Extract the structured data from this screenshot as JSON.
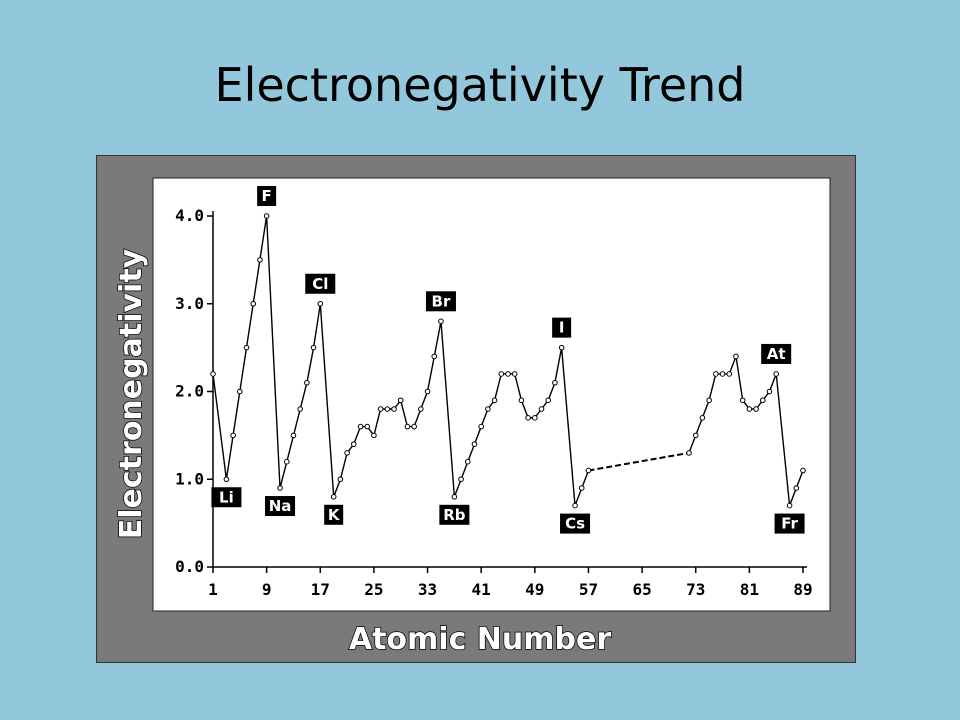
{
  "slide": {
    "title": "Electronegativity Trend"
  },
  "colors": {
    "background": "#93c8dc",
    "frame": "#7a7a7a",
    "plot": "#ffffff",
    "line": "#000000"
  },
  "chart_data": {
    "type": "line",
    "title": "Electronegativity Trend",
    "xlabel": "Atomic Number",
    "ylabel": "Electronegativity",
    "xlim": [
      1,
      89
    ],
    "ylim": [
      0.0,
      4.0
    ],
    "x_ticks": [
      "1",
      "9",
      "17",
      "25",
      "33",
      "41",
      "49",
      "57",
      "65",
      "73",
      "81",
      "89"
    ],
    "y_ticks": [
      "0.0",
      "1.0",
      "2.0",
      "3.0",
      "4.0"
    ],
    "grid": false,
    "series": [
      {
        "style": "solid",
        "segments": [
          [
            [
              1,
              2.2
            ],
            [
              3,
              1.0
            ],
            [
              4,
              1.5
            ],
            [
              5,
              2.0
            ],
            [
              6,
              2.5
            ],
            [
              7,
              3.0
            ],
            [
              8,
              3.5
            ],
            [
              9,
              4.0
            ],
            [
              11,
              0.9
            ],
            [
              12,
              1.2
            ],
            [
              13,
              1.5
            ],
            [
              14,
              1.8
            ],
            [
              15,
              2.1
            ],
            [
              16,
              2.5
            ],
            [
              17,
              3.0
            ],
            [
              19,
              0.8
            ],
            [
              20,
              1.0
            ],
            [
              21,
              1.3
            ],
            [
              22,
              1.4
            ],
            [
              23,
              1.6
            ],
            [
              24,
              1.6
            ],
            [
              25,
              1.5
            ],
            [
              26,
              1.8
            ],
            [
              27,
              1.8
            ],
            [
              28,
              1.8
            ],
            [
              29,
              1.9
            ],
            [
              30,
              1.6
            ],
            [
              31,
              1.6
            ],
            [
              32,
              1.8
            ],
            [
              33,
              2.0
            ],
            [
              34,
              2.4
            ],
            [
              35,
              2.8
            ],
            [
              37,
              0.8
            ],
            [
              38,
              1.0
            ],
            [
              39,
              1.2
            ],
            [
              40,
              1.4
            ],
            [
              41,
              1.6
            ],
            [
              42,
              1.8
            ],
            [
              43,
              1.9
            ],
            [
              44,
              2.2
            ],
            [
              45,
              2.2
            ],
            [
              46,
              2.2
            ],
            [
              47,
              1.9
            ],
            [
              48,
              1.7
            ],
            [
              49,
              1.7
            ],
            [
              50,
              1.8
            ],
            [
              51,
              1.9
            ],
            [
              52,
              2.1
            ],
            [
              53,
              2.5
            ],
            [
              55,
              0.7
            ],
            [
              56,
              0.9
            ],
            [
              57,
              1.1
            ]
          ],
          [
            [
              72,
              1.3
            ],
            [
              73,
              1.5
            ],
            [
              74,
              1.7
            ],
            [
              75,
              1.9
            ],
            [
              76,
              2.2
            ],
            [
              77,
              2.2
            ],
            [
              78,
              2.2
            ],
            [
              79,
              2.4
            ],
            [
              80,
              1.9
            ],
            [
              81,
              1.8
            ],
            [
              82,
              1.8
            ],
            [
              83,
              1.9
            ],
            [
              84,
              2.0
            ],
            [
              85,
              2.2
            ],
            [
              87,
              0.7
            ],
            [
              88,
              0.9
            ],
            [
              89,
              1.1
            ]
          ]
        ]
      },
      {
        "style": "dashed",
        "segments": [
          [
            [
              57,
              1.1
            ],
            [
              72,
              1.3
            ]
          ]
        ]
      }
    ],
    "annotations": [
      {
        "text": "F",
        "x": 9,
        "y": 4.0,
        "pos": "above"
      },
      {
        "text": "Cl",
        "x": 17,
        "y": 3.0,
        "pos": "above"
      },
      {
        "text": "Br",
        "x": 35,
        "y": 2.8,
        "pos": "above"
      },
      {
        "text": "I",
        "x": 53,
        "y": 2.5,
        "pos": "above"
      },
      {
        "text": "At",
        "x": 85,
        "y": 2.2,
        "pos": "above"
      },
      {
        "text": "Li",
        "x": 3,
        "y": 1.0,
        "pos": "below"
      },
      {
        "text": "Na",
        "x": 11,
        "y": 0.9,
        "pos": "below"
      },
      {
        "text": "K",
        "x": 19,
        "y": 0.8,
        "pos": "below"
      },
      {
        "text": "Rb",
        "x": 37,
        "y": 0.8,
        "pos": "below"
      },
      {
        "text": "Cs",
        "x": 55,
        "y": 0.7,
        "pos": "below"
      },
      {
        "text": "Fr",
        "x": 87,
        "y": 0.7,
        "pos": "below"
      }
    ]
  }
}
